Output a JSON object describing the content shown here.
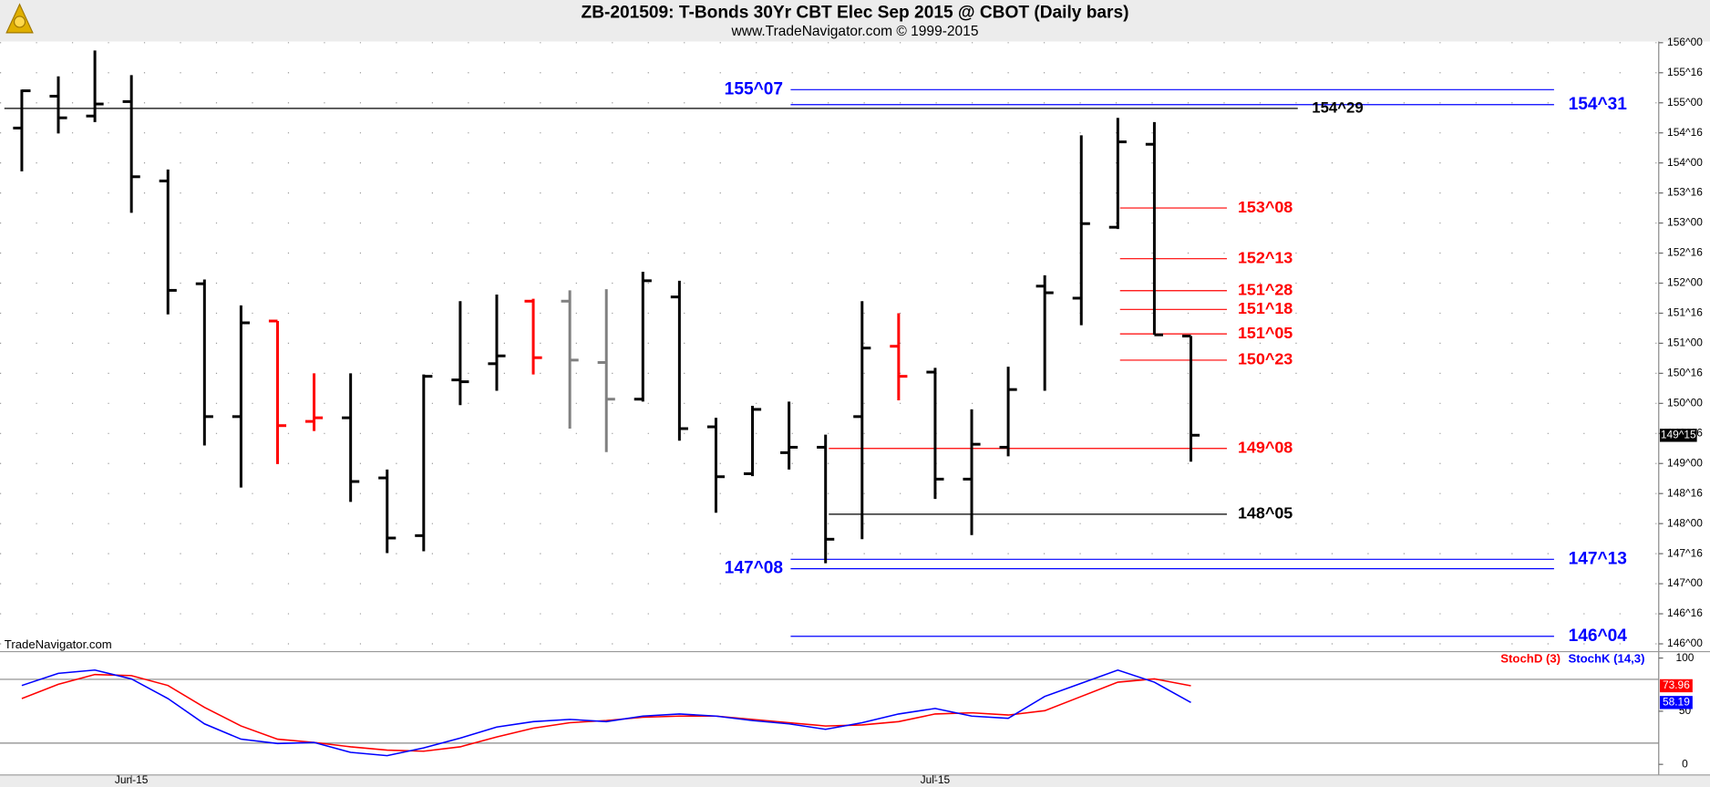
{
  "chart_data": [
    {
      "type": "ohlc",
      "title": "ZB-201509:  T-Bonds 30Yr CBT Elec Sep 2015 @ CBOT  (Daily bars)",
      "subtitle": "www.TradeNavigator.com © 1999-2015",
      "watermark": "TradeNavigator.com",
      "categories": [
        null,
        null,
        null,
        "Jun-15",
        null,
        null,
        null,
        null,
        null,
        null,
        null,
        null,
        null,
        null,
        null,
        null,
        null,
        null,
        null,
        null,
        null,
        null,
        null,
        null,
        null,
        "Jul-15",
        null,
        null,
        null,
        null,
        null,
        null,
        null
      ],
      "open": [
        154.58,
        155.11,
        154.78,
        155.02,
        153.7,
        151.99,
        149.78,
        151.37,
        149.7,
        149.76,
        148.76,
        147.8,
        150.39,
        150.66,
        151.7,
        151.7,
        150.68,
        150.07,
        151.77,
        149.61,
        148.83,
        149.18,
        149.27,
        149.78,
        150.95,
        150.52,
        148.74,
        149.27,
        151.95,
        151.75,
        152.93,
        154.31,
        151.12
      ],
      "high": [
        155.22,
        155.44,
        155.87,
        155.46,
        153.89,
        152.06,
        151.63,
        151.37,
        150.5,
        150.5,
        148.9,
        150.48,
        151.7,
        151.81,
        151.74,
        151.88,
        151.9,
        152.19,
        152.04,
        149.76,
        149.96,
        150.03,
        149.48,
        151.7,
        151.5,
        150.59,
        149.9,
        150.61,
        152.13,
        154.46,
        154.75,
        154.68,
        151.12
      ],
      "low": [
        153.86,
        154.49,
        154.68,
        153.17,
        151.48,
        149.3,
        148.6,
        148.99,
        149.54,
        148.36,
        147.51,
        147.54,
        149.97,
        150.21,
        150.48,
        149.58,
        149.19,
        150.03,
        149.38,
        148.18,
        148.79,
        148.9,
        147.34,
        147.74,
        150.05,
        148.41,
        147.81,
        149.12,
        150.21,
        151.3,
        152.9,
        151.14,
        149.03
      ],
      "close": [
        155.2,
        154.75,
        154.98,
        153.77,
        151.88,
        149.78,
        151.34,
        149.63,
        149.76,
        148.7,
        147.76,
        150.45,
        150.36,
        150.79,
        150.76,
        150.72,
        150.07,
        152.04,
        149.58,
        148.78,
        149.9,
        149.27,
        147.74,
        150.92,
        150.45,
        148.74,
        149.32,
        150.23,
        151.84,
        152.99,
        154.35,
        151.14,
        149.47
      ],
      "bar_colors": [
        "#000",
        "#000",
        "#000",
        "#000",
        "#000",
        "#000",
        "#000",
        "#ff0000",
        "#ff0000",
        "#000",
        "#000",
        "#000",
        "#000",
        "#000",
        "#ff0000",
        "#808080",
        "#808080",
        "#000",
        "#000",
        "#000",
        "#000",
        "#000",
        "#000",
        "#000",
        "#ff0000",
        "#000",
        "#000",
        "#000",
        "#000",
        "#000",
        "#000",
        "#000",
        "#000"
      ],
      "ylim": [
        145.87,
        156.02
      ],
      "yticks": [
        {
          "value": 146,
          "label": "146^00"
        },
        {
          "value": 146.5,
          "label": "146^16"
        },
        {
          "value": 147,
          "label": "147^00"
        },
        {
          "value": 147.5,
          "label": "147^16"
        },
        {
          "value": 148,
          "label": "148^00"
        },
        {
          "value": 148.5,
          "label": "148^16"
        },
        {
          "value": 149,
          "label": "149^00"
        },
        {
          "value": 149.5,
          "label": "149^16"
        },
        {
          "value": 150,
          "label": "150^00"
        },
        {
          "value": 150.5,
          "label": "150^16"
        },
        {
          "value": 151,
          "label": "151^00"
        },
        {
          "value": 151.5,
          "label": "151^16"
        },
        {
          "value": 152,
          "label": "152^00"
        },
        {
          "value": 152.5,
          "label": "152^16"
        },
        {
          "value": 153,
          "label": "153^00"
        },
        {
          "value": 153.5,
          "label": "153^16"
        },
        {
          "value": 154,
          "label": "154^00"
        },
        {
          "value": 154.5,
          "label": "154^16"
        },
        {
          "value": 155,
          "label": "155^00"
        },
        {
          "value": 155.5,
          "label": "155^16"
        },
        {
          "value": 156,
          "label": "156^00"
        }
      ],
      "grid": true,
      "last_price": {
        "value": 149.46875,
        "label": "149^15"
      },
      "levels": [
        {
          "value": 155.21875,
          "label": "155^07",
          "color": "#0000ff"
        },
        {
          "value": 154.96875,
          "label": "154^31",
          "color": "#0000ff"
        },
        {
          "value": 154.90625,
          "label": "154^29",
          "color": "#000000"
        },
        {
          "value": 153.25,
          "label": "153^08",
          "color": "#ff0000"
        },
        {
          "value": 152.40625,
          "label": "152^13",
          "color": "#ff0000"
        },
        {
          "value": 151.875,
          "label": "151^28",
          "color": "#ff0000"
        },
        {
          "value": 151.5625,
          "label": "151^18",
          "color": "#ff0000"
        },
        {
          "value": 151.15625,
          "label": "151^05",
          "color": "#ff0000"
        },
        {
          "value": 150.71875,
          "label": "150^23",
          "color": "#ff0000"
        },
        {
          "value": 149.25,
          "label": "149^08",
          "color": "#ff0000"
        },
        {
          "value": 148.15625,
          "label": "148^05",
          "color": "#000000"
        },
        {
          "value": 147.40625,
          "label": "147^13",
          "color": "#0000ff"
        },
        {
          "value": 147.25,
          "label": "147^08",
          "color": "#0000ff"
        },
        {
          "value": 146.125,
          "label": "146^04",
          "color": "#0000ff"
        }
      ]
    },
    {
      "type": "line",
      "series": [
        {
          "name": "StochD (3)",
          "color": "#ff0000",
          "values": [
            61.9,
            75.3,
            84.5,
            83.5,
            74.2,
            53.6,
            36.1,
            23.7,
            20.6,
            16.5,
            13.4,
            12.4,
            16.5,
            25.8,
            34.0,
            39.2,
            41.2,
            44.3,
            45.4,
            45.4,
            42.3,
            39.2,
            36.1,
            37.1,
            40.2,
            47.4,
            48.5,
            46.4,
            50.5,
            63.9,
            77.3,
            80.4,
            73.96
          ]
        },
        {
          "name": "StochK (14,3)",
          "color": "#0000ff",
          "values": [
            74.2,
            85.6,
            88.7,
            80.4,
            61.9,
            38.1,
            23.7,
            19.6,
            20.6,
            11.3,
            8.2,
            15.5,
            24.7,
            35.1,
            40.2,
            42.3,
            40.2,
            45.4,
            47.4,
            45.4,
            41.2,
            38.1,
            33.0,
            39.2,
            47.4,
            52.6,
            45.4,
            43.3,
            63.9,
            76.3,
            88.7,
            77.3,
            58.19
          ]
        }
      ],
      "ylim": [
        -10,
        105
      ],
      "yticks": [
        0,
        50,
        100
      ],
      "bands": [
        20,
        80
      ]
    }
  ]
}
